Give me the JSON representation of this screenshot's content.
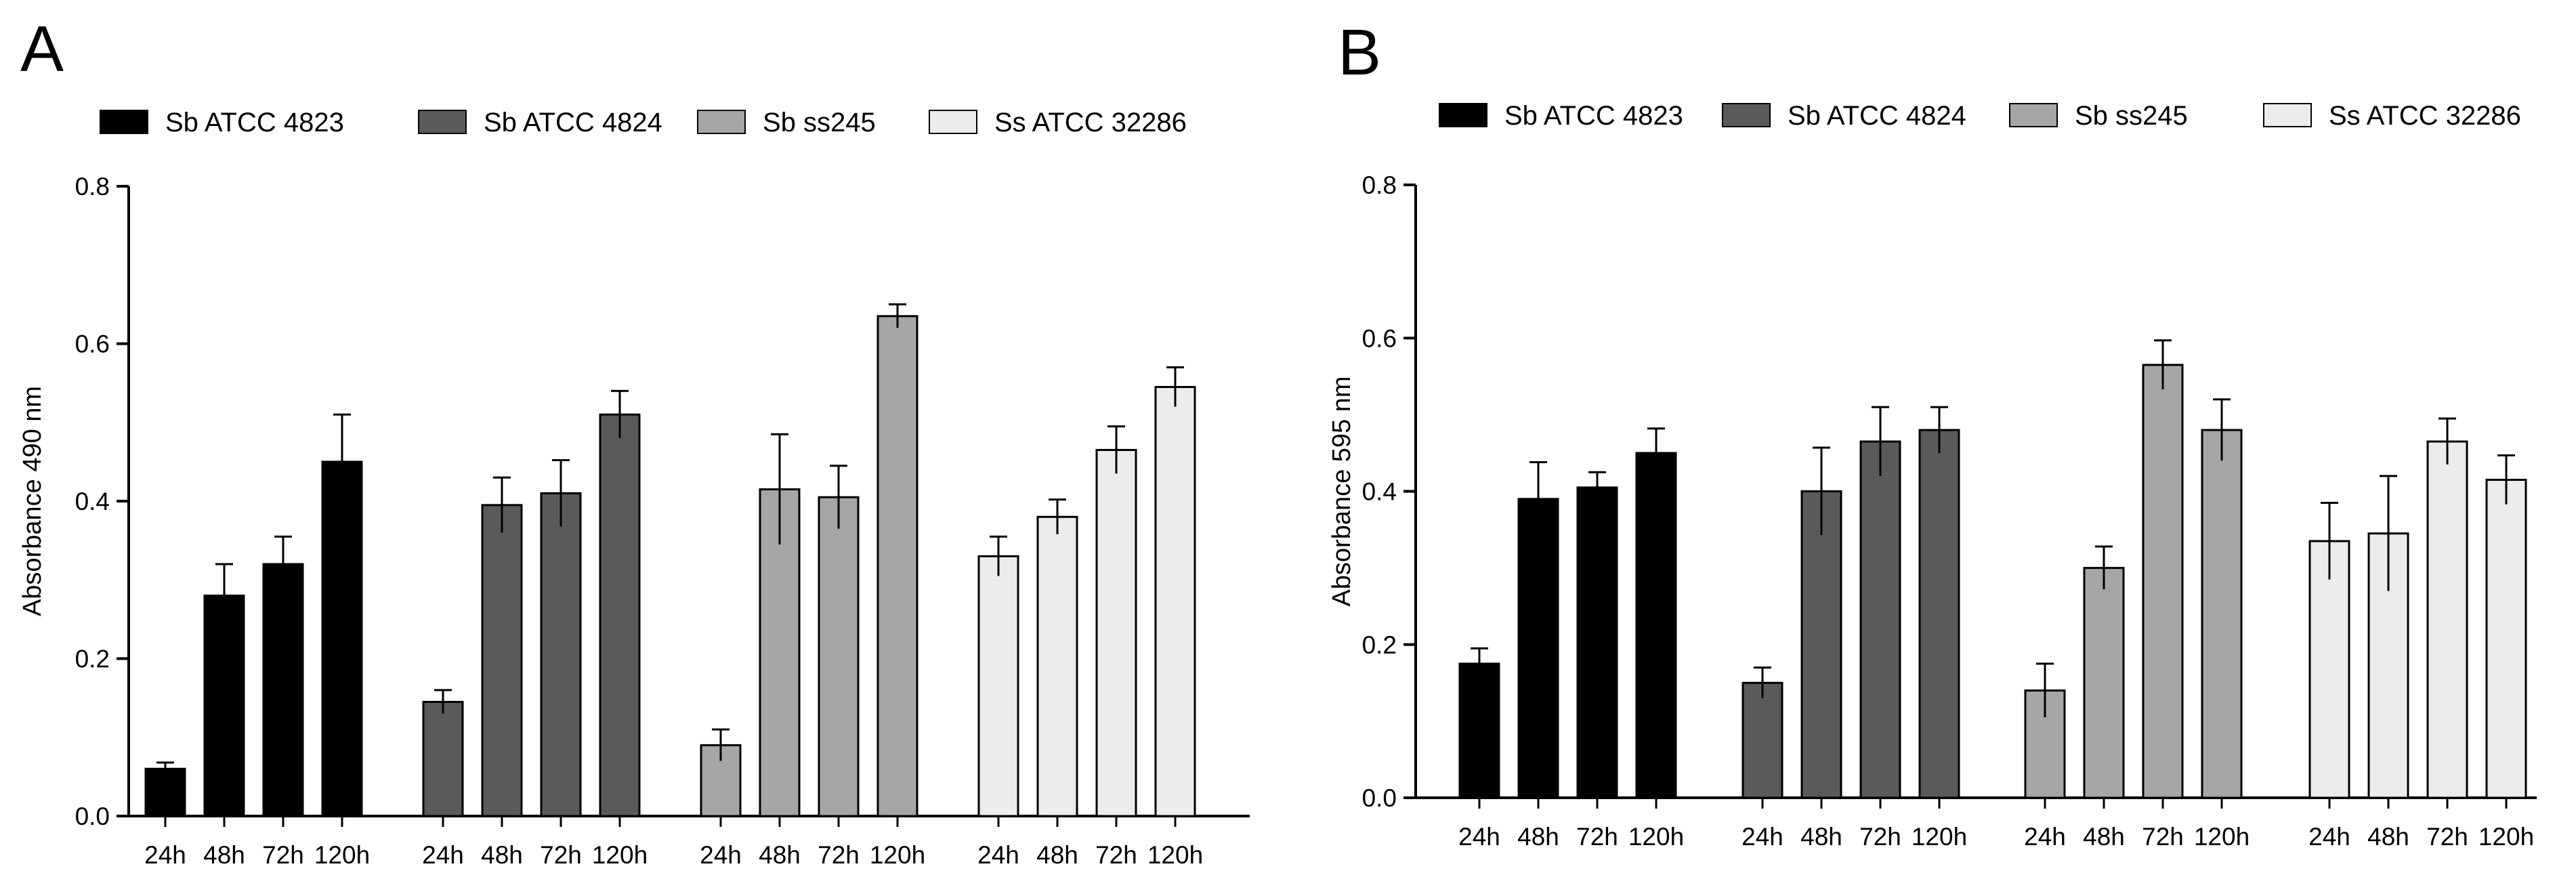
{
  "chart_data": [
    {
      "type": "bar",
      "panel_label": "A",
      "title": "",
      "xlabel": "",
      "ylabel": "Absorbance 490 nm",
      "ylim": [
        0.0,
        0.8
      ],
      "yticks": [
        "0.0",
        "0.2",
        "0.4",
        "0.6",
        "0.8"
      ],
      "yticks_values": [
        0.0,
        0.2,
        0.4,
        0.6,
        0.8
      ],
      "categories": [
        "24h",
        "48h",
        "72h",
        "120h"
      ],
      "legend_position": "top",
      "series": [
        {
          "name": "Sb ATCC 4823",
          "color": "#000000",
          "values": [
            0.06,
            0.28,
            0.32,
            0.45
          ],
          "errors": [
            0.008,
            0.04,
            0.035,
            0.06
          ]
        },
        {
          "name": "Sb ATCC 4824",
          "color": "#5a5a5a",
          "values": [
            0.145,
            0.395,
            0.41,
            0.51
          ],
          "errors": [
            0.015,
            0.035,
            0.042,
            0.03
          ]
        },
        {
          "name": "Sb ss245",
          "color": "#a6a6a6",
          "values": [
            0.09,
            0.415,
            0.405,
            0.635
          ],
          "errors": [
            0.02,
            0.07,
            0.04,
            0.015
          ]
        },
        {
          "name": "Ss ATCC 32286",
          "color": "#ececec",
          "values": [
            0.33,
            0.38,
            0.465,
            0.545
          ],
          "errors": [
            0.025,
            0.022,
            0.03,
            0.025
          ]
        }
      ]
    },
    {
      "type": "bar",
      "panel_label": "B",
      "title": "",
      "xlabel": "",
      "ylabel": "Absorbance 595 nm",
      "ylim": [
        0.0,
        0.8
      ],
      "yticks": [
        "0.0",
        "0.2",
        "0.4",
        "0.6",
        "0.8"
      ],
      "yticks_values": [
        0.0,
        0.2,
        0.4,
        0.6,
        0.8
      ],
      "categories": [
        "24h",
        "48h",
        "72h",
        "120h"
      ],
      "legend_position": "top",
      "series": [
        {
          "name": "Sb ATCC 4823",
          "color": "#000000",
          "values": [
            0.175,
            0.39,
            0.405,
            0.45
          ],
          "errors": [
            0.02,
            0.048,
            0.02,
            0.032
          ]
        },
        {
          "name": "Sb ATCC 4824",
          "color": "#5a5a5a",
          "values": [
            0.15,
            0.4,
            0.465,
            0.48
          ],
          "errors": [
            0.02,
            0.057,
            0.045,
            0.03
          ]
        },
        {
          "name": "Sb ss245",
          "color": "#a6a6a6",
          "values": [
            0.14,
            0.3,
            0.565,
            0.48
          ],
          "errors": [
            0.035,
            0.028,
            0.032,
            0.04
          ]
        },
        {
          "name": "Ss ATCC 32286",
          "color": "#ececec",
          "values": [
            0.335,
            0.345,
            0.465,
            0.415
          ],
          "errors": [
            0.05,
            0.075,
            0.03,
            0.032
          ]
        }
      ]
    }
  ]
}
